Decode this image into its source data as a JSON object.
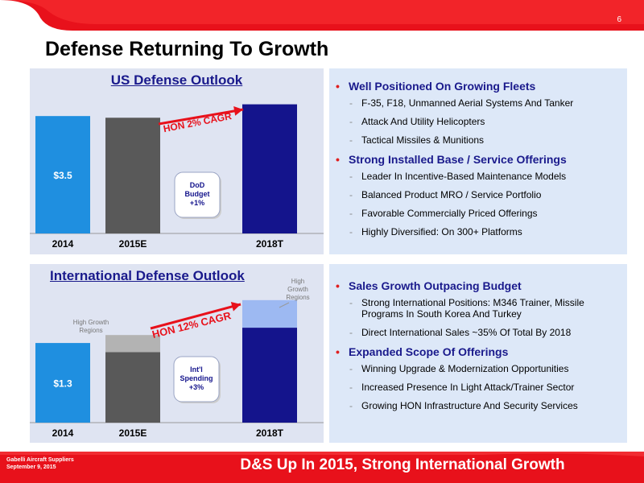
{
  "page_number": "6",
  "title": "Defense Returning To Growth",
  "colors": {
    "brand_red": "#e8111b",
    "navy": "#14148c",
    "light_blue": "#4f81e6",
    "dark_gray": "#595959",
    "light_gray": "#b3b3b3",
    "panel": "#dfe4f2"
  },
  "top_panel": {
    "bullets": [
      {
        "text": "Well Positioned On Growing Fleets",
        "subs": [
          "F-35, F18, Unmanned Aerial Systems And Tanker",
          "Attack And Utility Helicopters",
          "Tactical Missiles & Munitions"
        ]
      },
      {
        "text": "Strong Installed Base / Service Offerings",
        "subs": [
          "Leader In Incentive-Based Maintenance Models",
          "Balanced Product MRO / Service Portfolio",
          "Favorable Commercially Priced Offerings",
          "Highly Diversified: On 300+ Platforms"
        ]
      }
    ]
  },
  "bottom_panel": {
    "bullets": [
      {
        "text": "Sales Growth Outpacing Budget",
        "subs": [
          "Strong International Positions: M346 Trainer, Missile Programs In South Korea And Turkey",
          "Direct International Sales ~35% Of Total By 2018"
        ]
      },
      {
        "text": "Expanded Scope Of Offerings",
        "subs": [
          "Winning Upgrade & Modernization Opportunities",
          "Increased Presence In Light Attack/Trainer Sector",
          "Growing HON Infrastructure And Security Services"
        ]
      }
    ]
  },
  "chart_data": [
    {
      "type": "bar",
      "title": "US Defense Outlook",
      "categories": [
        "2014",
        "2015E",
        "2018T"
      ],
      "values": [
        3.5,
        3.45,
        3.85
      ],
      "value_labels": [
        "$3.5",
        "",
        ""
      ],
      "colors": [
        "#1f8fe0",
        "#595959",
        "#14148c"
      ],
      "ylim": [
        0,
        4.2
      ],
      "annotations": {
        "cagr": "HON 2% CAGR",
        "bubble_lines": [
          "DoD",
          "Budget",
          "+1%"
        ]
      }
    },
    {
      "type": "bar",
      "title": "International Defense Outlook",
      "categories": [
        "2014",
        "2015E",
        "2018T"
      ],
      "series": [
        {
          "name": "",
          "values": [
            1.3,
            1.15,
            1.55
          ],
          "colors": [
            "#1f8fe0",
            "#595959",
            "#14148c"
          ]
        },
        {
          "name": "High Growth Regions",
          "values": [
            0,
            0.28,
            0.45
          ],
          "colors": [
            "#1f8fe0",
            "#b3b3b3",
            "#9db9f2"
          ]
        }
      ],
      "value_labels": [
        "$1.3",
        "",
        ""
      ],
      "ylim": [
        0,
        2.3
      ],
      "annotations": {
        "cagr": "HON 12% CAGR",
        "bubble_lines": [
          "Int'l",
          "Spending",
          "+3%"
        ],
        "region_label_2015": [
          "High Growth",
          "Regions"
        ],
        "region_label_2018": [
          "High",
          "Growth",
          "Regions"
        ]
      }
    }
  ],
  "footer": {
    "left_line1": "Gabelli Aircraft Suppliers",
    "left_line2": "September 9, 2015",
    "title": "D&S Up In 2015, Strong International Growth"
  }
}
